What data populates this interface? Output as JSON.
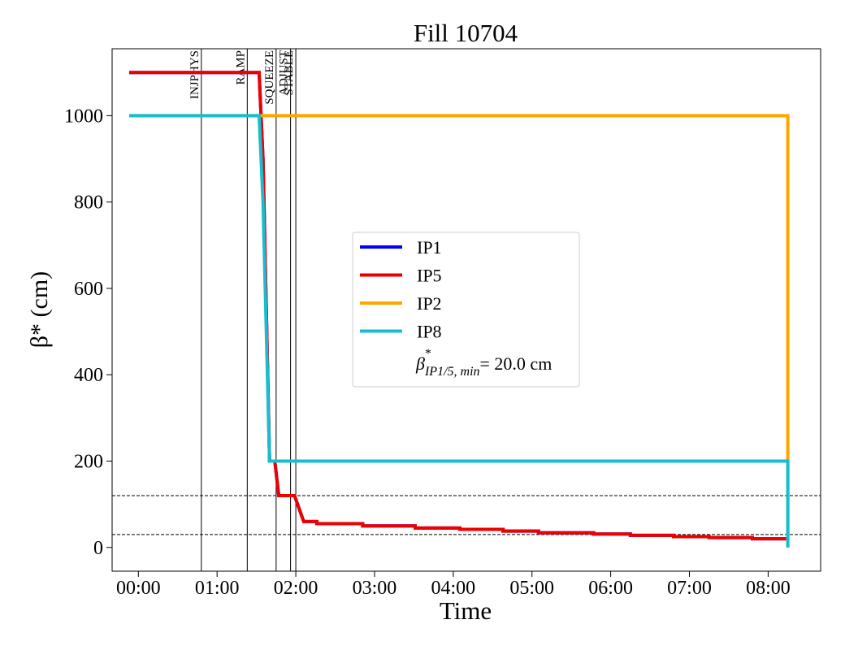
{
  "chart_data": {
    "type": "line",
    "title": "Fill 10704",
    "xlabel": "Time",
    "ylabel": "β* (cm)",
    "xlim": [
      "-00:20",
      "08:40"
    ],
    "ylim": [
      -55,
      1155
    ],
    "x_ticks": [
      "00:00",
      "01:00",
      "02:00",
      "03:00",
      "04:00",
      "05:00",
      "06:00",
      "07:00",
      "08:00"
    ],
    "y_ticks": [
      0,
      200,
      400,
      600,
      800,
      1000
    ],
    "grid": false,
    "legend_position": "center",
    "beam_modes": [
      {
        "label": "INJPHYS",
        "time": "00:48"
      },
      {
        "label": "RAMP",
        "time": "01:23"
      },
      {
        "label": "SQUEEZE",
        "time": "01:45"
      },
      {
        "label": "ADJUST",
        "time": "01:56"
      },
      {
        "label": "STABLE",
        "time": "02:00"
      }
    ],
    "reference_lines": [
      120,
      30
    ],
    "series": [
      {
        "name": "IP1",
        "color": "#0000ff",
        "points": [
          [
            "-00:07",
            1100
          ],
          [
            "01:32",
            1100
          ],
          [
            "01:35",
            900
          ],
          [
            "01:40",
            200
          ],
          [
            "01:44",
            200
          ],
          [
            "01:47",
            120
          ],
          [
            "01:59",
            120
          ],
          [
            "02:06",
            60
          ],
          [
            "02:16",
            60
          ],
          [
            "02:16",
            55
          ],
          [
            "02:51",
            55
          ],
          [
            "02:51",
            50
          ],
          [
            "03:31",
            50
          ],
          [
            "03:31",
            45
          ],
          [
            "04:05",
            45
          ],
          [
            "04:05",
            42
          ],
          [
            "04:38",
            42
          ],
          [
            "04:38",
            38
          ],
          [
            "05:05",
            38
          ],
          [
            "05:05",
            34
          ],
          [
            "05:47",
            34
          ],
          [
            "05:47",
            31
          ],
          [
            "06:15",
            31
          ],
          [
            "06:15",
            28
          ],
          [
            "06:48",
            28
          ],
          [
            "06:48",
            25
          ],
          [
            "07:15",
            25
          ],
          [
            "07:15",
            23
          ],
          [
            "07:48",
            23
          ],
          [
            "07:48",
            20
          ],
          [
            "08:15",
            20
          ]
        ]
      },
      {
        "name": "IP5",
        "color": "#ee0000",
        "points": [
          [
            "-00:07",
            1100
          ],
          [
            "01:32",
            1100
          ],
          [
            "01:35",
            900
          ],
          [
            "01:40",
            200
          ],
          [
            "01:44",
            200
          ],
          [
            "01:47",
            120
          ],
          [
            "01:59",
            120
          ],
          [
            "02:06",
            60
          ],
          [
            "02:16",
            60
          ],
          [
            "02:16",
            55
          ],
          [
            "02:51",
            55
          ],
          [
            "02:51",
            50
          ],
          [
            "03:31",
            50
          ],
          [
            "03:31",
            45
          ],
          [
            "04:05",
            45
          ],
          [
            "04:05",
            42
          ],
          [
            "04:38",
            42
          ],
          [
            "04:38",
            38
          ],
          [
            "05:05",
            38
          ],
          [
            "05:05",
            34
          ],
          [
            "05:47",
            34
          ],
          [
            "05:47",
            31
          ],
          [
            "06:15",
            31
          ],
          [
            "06:15",
            28
          ],
          [
            "06:48",
            28
          ],
          [
            "06:48",
            25
          ],
          [
            "07:15",
            25
          ],
          [
            "07:15",
            23
          ],
          [
            "07:48",
            23
          ],
          [
            "07:48",
            20
          ],
          [
            "08:15",
            20
          ]
        ]
      },
      {
        "name": "IP2",
        "color": "#ffa500",
        "points": [
          [
            "-00:07",
            1000
          ],
          [
            "08:15",
            1000
          ],
          [
            "08:15",
            0
          ]
        ]
      },
      {
        "name": "IP8",
        "color": "#17becf",
        "points": [
          [
            "-00:07",
            1000
          ],
          [
            "01:32",
            1000
          ],
          [
            "01:35",
            800
          ],
          [
            "01:40",
            200
          ],
          [
            "08:15",
            200
          ],
          [
            "08:15",
            0
          ]
        ]
      }
    ],
    "legend_extra": {
      "symbol": "β",
      "superscript": "*",
      "subscript": "IP1/5, min",
      "value": "= 20.0 cm"
    }
  }
}
